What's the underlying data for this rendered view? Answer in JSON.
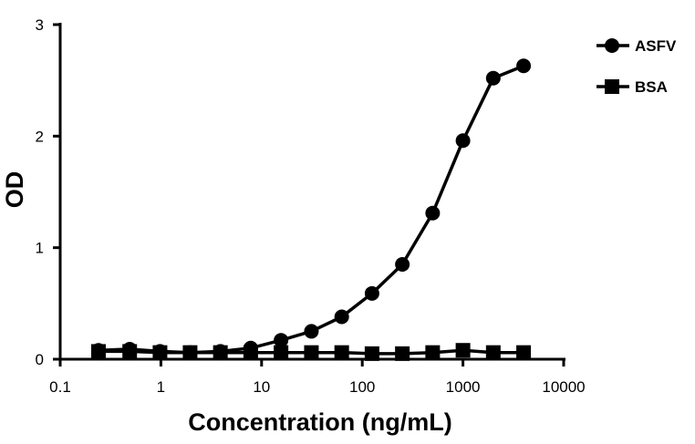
{
  "chart_data": {
    "type": "line",
    "title": "",
    "xlabel": "Concentration (ng/mL)",
    "ylabel": "OD",
    "xscale": "log",
    "xlim": [
      0.1,
      10000
    ],
    "ylim": [
      0,
      3
    ],
    "xticks": [
      "0.1",
      "1",
      "10",
      "100",
      "1000",
      "10000"
    ],
    "xtick_values": [
      0.1,
      1,
      10,
      100,
      1000,
      10000
    ],
    "yticks": [
      "0",
      "1",
      "2",
      "3"
    ],
    "ytick_values": [
      0,
      1,
      2,
      3
    ],
    "grid": false,
    "legend_position": "top-right",
    "x": [
      0.24,
      0.49,
      0.98,
      1.95,
      3.9,
      7.8,
      15.6,
      31.25,
      62.5,
      125,
      250,
      500,
      1000,
      2000,
      4000
    ],
    "series": [
      {
        "name": "ASFV",
        "marker": "circle",
        "color": "#000000",
        "values": [
          0.08,
          0.09,
          0.07,
          0.06,
          0.07,
          0.1,
          0.17,
          0.25,
          0.38,
          0.59,
          0.85,
          1.31,
          1.96,
          2.52,
          2.63
        ]
      },
      {
        "name": "BSA",
        "marker": "square",
        "color": "#000000",
        "values": [
          0.07,
          0.07,
          0.06,
          0.06,
          0.06,
          0.06,
          0.06,
          0.06,
          0.06,
          0.05,
          0.05,
          0.06,
          0.08,
          0.06,
          0.06
        ]
      }
    ]
  }
}
